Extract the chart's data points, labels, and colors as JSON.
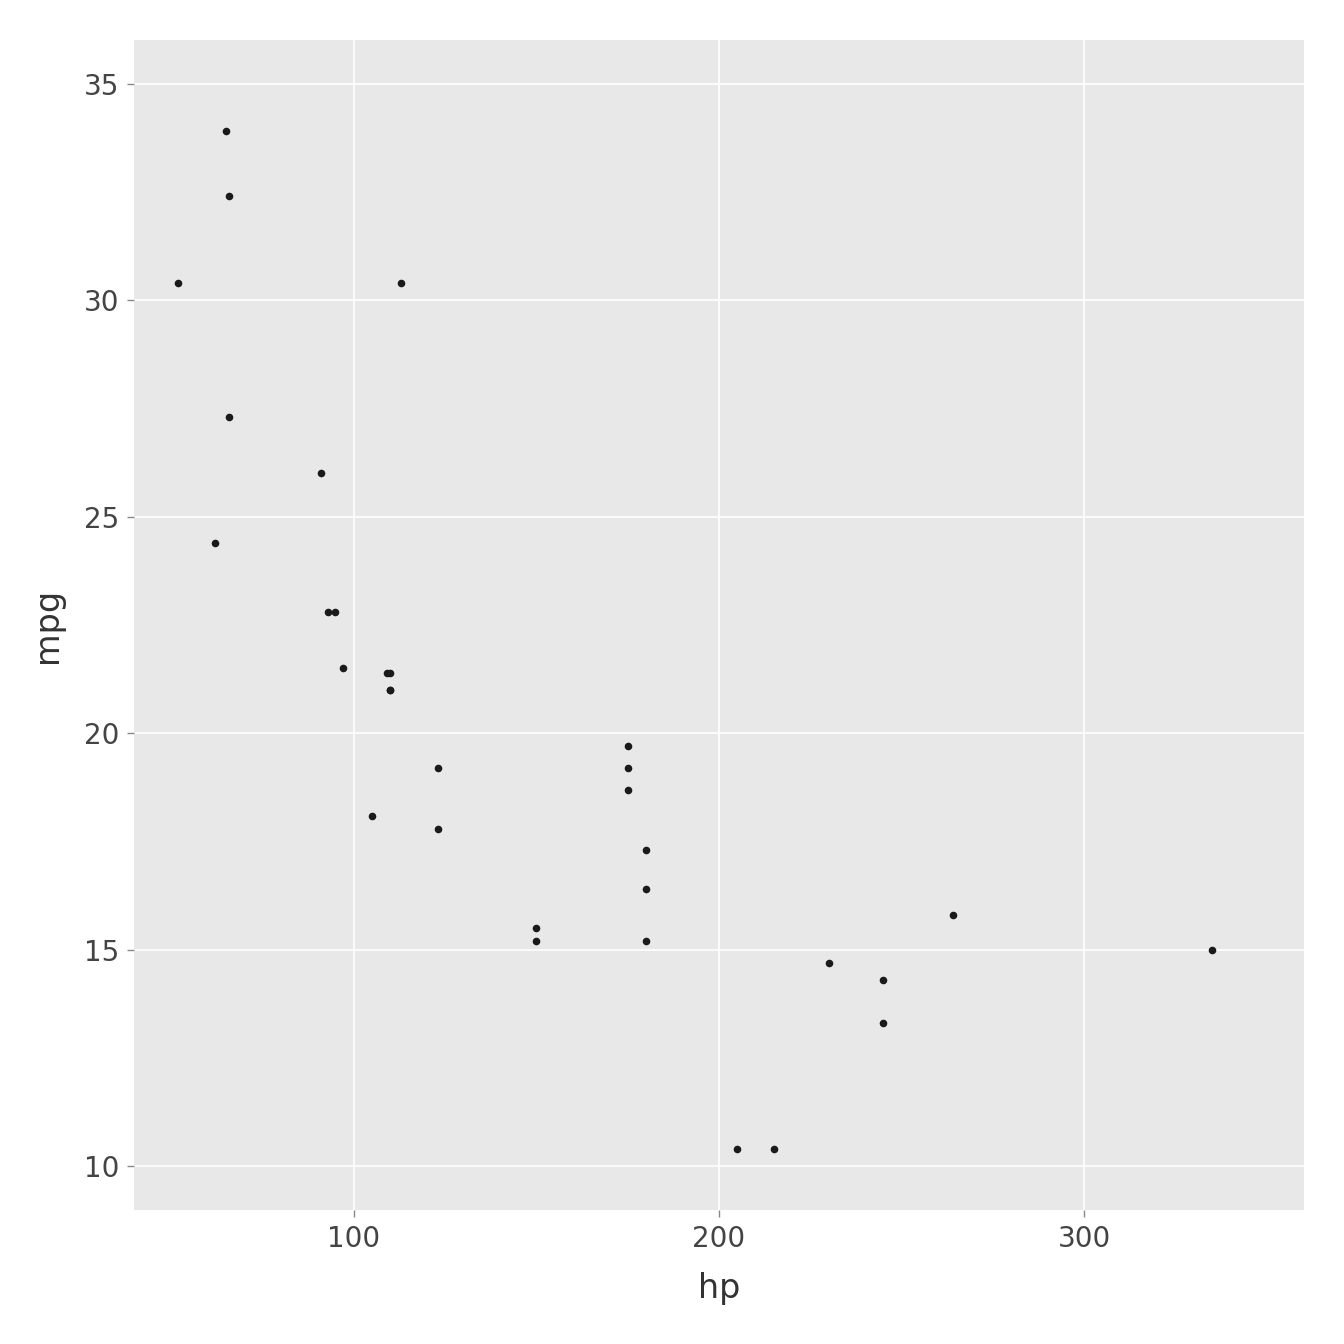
{
  "hp": [
    110,
    110,
    93,
    110,
    175,
    105,
    245,
    62,
    95,
    123,
    123,
    180,
    180,
    180,
    205,
    215,
    230,
    66,
    52,
    65,
    97,
    150,
    150,
    245,
    175,
    66,
    91,
    113,
    264,
    175,
    335,
    109
  ],
  "mpg": [
    21.0,
    21.0,
    22.8,
    21.4,
    18.7,
    18.1,
    14.3,
    24.4,
    22.8,
    19.2,
    17.8,
    16.4,
    17.3,
    15.2,
    10.4,
    10.4,
    14.7,
    32.4,
    30.4,
    33.9,
    21.5,
    15.5,
    15.2,
    13.3,
    19.2,
    27.3,
    26.0,
    30.4,
    15.8,
    19.7,
    15.0,
    21.4
  ],
  "xlabel": "hp",
  "ylabel": "mpg",
  "xlim": [
    40,
    360
  ],
  "ylim": [
    9,
    36
  ],
  "xticks": [
    100,
    200,
    300
  ],
  "yticks": [
    10,
    15,
    20,
    25,
    30,
    35
  ],
  "plot_bg_color": "#e8e8e8",
  "fig_bg_color": "#ffffff",
  "dot_color": "#1a1a1a",
  "dot_size": 30,
  "grid_color": "#ffffff",
  "grid_linewidth": 1.2,
  "tick_label_color": "#444444",
  "tick_label_size": 20,
  "axis_label_size": 24,
  "axis_label_color": "#333333"
}
